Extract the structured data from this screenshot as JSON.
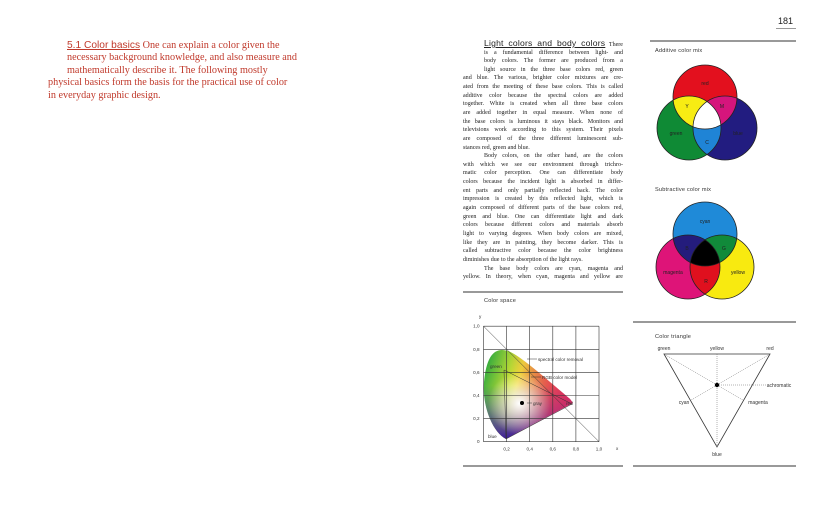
{
  "page_number": "181",
  "intro": {
    "heading": "5.1 Color basics",
    "lines": [
      "One can explain a color given the",
      "necessary background knowledge, and also measure and",
      "mathematically describe it. The following mostly",
      "physical basics form the basis for the practical use of color",
      "in everyday graphic design."
    ]
  },
  "body": {
    "heading": "Light colors and body colors",
    "lines": [
      "There",
      "is a fundamental difference between light- and",
      "body colors. The former are produced from a",
      "light source in the three base colors red, green",
      "and blue. The various, brighter color mixtures are cre-",
      "ated from the meeting of these base colors. This is called",
      "additive color because the spectral colors are added",
      "together. White is created when all three base colors",
      "are added together in equal measure. When none of",
      "the base colors is luminous it stays black. Monitors and",
      "televisions work according to this system. Their pixels",
      "are composed of the three different luminescent sub-",
      "stances red, green and blue.",
      "Body colors, on the other hand, are the colors",
      "with which we see our environment through trichro-",
      "matic color perception. One can differentiate body",
      "colors because the incident light is absorbed in differ-",
      "ent parts and only partially reflected back. The color",
      "impression is created by this reflected light, which is",
      "again composed of different parts of the base colors red,",
      "green and blue. One can differentiate light and dark",
      "colors because different colors and materials absorb",
      "light to varying degrees. When body colors are mixed,",
      "like they are in painting, they become darker. This is",
      "called subtractive color because the color brightness",
      "diminishes due to the absorption of the light rays.",
      "The base body colors are cyan, magenta and",
      "yellow. In theory, when cyan, magenta and yellow are"
    ]
  },
  "additive": {
    "title": "Additive color mix",
    "labels": {
      "red": "red",
      "green": "green",
      "blue": "blue",
      "y": "Y",
      "m": "M",
      "c": "C"
    },
    "colors": {
      "red": "#e3101e",
      "green": "#0f8a35",
      "blue": "#221c80",
      "yellow": "#f7ec13",
      "magenta": "#d5157c",
      "cyan": "#1f84d6",
      "white": "#ffffff"
    }
  },
  "subtractive": {
    "title": "Subtractive color mix",
    "labels": {
      "cyan": "cyan",
      "magenta": "magenta",
      "yellow": "yellow",
      "b": "B",
      "g": "G",
      "r": "R"
    },
    "colors": {
      "cyan": "#1f8ad8",
      "magenta": "#de1478",
      "yellow": "#f8ea10",
      "blue": "#241c7c",
      "green": "#118a3a",
      "red": "#e0101e",
      "black": "#000000"
    }
  },
  "color_space": {
    "title": "Color space",
    "y_axis_label": "y",
    "x_axis_label": "x",
    "y_ticks": [
      "1,0",
      "0,8",
      "0,6",
      "0,4",
      "0,2",
      "0"
    ],
    "x_ticks": [
      "0,2",
      "0,4",
      "0,6",
      "0,8",
      "1,0"
    ],
    "annotations": {
      "spectral": "spectral color removal",
      "rgb": "RGB color model",
      "gray": "gray",
      "green": "green",
      "red": "red",
      "blue": "blue"
    }
  },
  "triangle": {
    "title": "Color triangle",
    "labels": {
      "green": "green",
      "yellow": "yellow",
      "red": "red",
      "achromatic": "achromatic",
      "cyan": "cyan",
      "magenta": "magenta",
      "blue": "blue"
    }
  }
}
